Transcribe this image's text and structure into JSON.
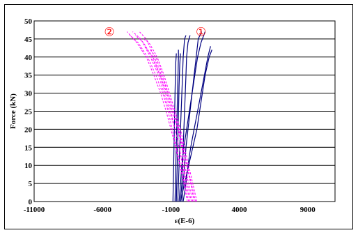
{
  "chart_data": {
    "type": "line",
    "title": "",
    "xlabel": "ε(E-6)",
    "ylabel": "Force (kN)",
    "xlim": [
      -11000,
      11000
    ],
    "ylim": [
      0,
      50
    ],
    "x_ticks": [
      "-11000",
      "-6000",
      "-1000",
      "4000",
      "9000"
    ],
    "y_ticks": [
      "0",
      "5",
      "10",
      "15",
      "20",
      "25",
      "30",
      "35",
      "40",
      "45",
      "50"
    ],
    "grid": "horizontal",
    "legend": "none",
    "annotations": [
      {
        "text": "①",
        "x": 1200,
        "y": 47
      },
      {
        "text": "②",
        "x": -5500,
        "y": 47
      }
    ],
    "series": [
      {
        "color": "#000080",
        "style": "solid",
        "values": [
          [
            [
              -200,
              0
            ],
            [
              -100,
              5
            ],
            [
              0,
              10
            ],
            [
              100,
              15
            ],
            [
              250,
              20
            ],
            [
              400,
              25
            ],
            [
              550,
              30
            ],
            [
              700,
              35
            ],
            [
              850,
              40
            ],
            [
              1000,
              45
            ],
            [
              1250,
              47
            ]
          ],
          [
            [
              -400,
              0
            ],
            [
              -300,
              5
            ],
            [
              -200,
              10
            ],
            [
              -50,
              15
            ],
            [
              150,
              20
            ],
            [
              350,
              25
            ],
            [
              550,
              30
            ],
            [
              750,
              35
            ],
            [
              950,
              40
            ],
            [
              1200,
              44
            ],
            [
              1500,
              47
            ]
          ],
          [
            [
              -100,
              0
            ],
            [
              100,
              5
            ],
            [
              250,
              10
            ],
            [
              450,
              15
            ],
            [
              700,
              20
            ],
            [
              950,
              25
            ],
            [
              1200,
              30
            ],
            [
              1450,
              35
            ],
            [
              1700,
              40
            ],
            [
              1900,
              43
            ]
          ],
          [
            [
              -300,
              0
            ],
            [
              -200,
              5
            ],
            [
              -150,
              10
            ],
            [
              -100,
              15
            ],
            [
              -50,
              20
            ],
            [
              0,
              25
            ],
            [
              50,
              30
            ],
            [
              100,
              35
            ],
            [
              150,
              40
            ],
            [
              250,
              44
            ],
            [
              400,
              46
            ]
          ],
          [
            [
              -500,
              0
            ],
            [
              -450,
              5
            ],
            [
              -400,
              10
            ],
            [
              -350,
              15
            ],
            [
              -300,
              20
            ],
            [
              -250,
              25
            ],
            [
              -200,
              30
            ],
            [
              -150,
              35
            ],
            [
              -100,
              40
            ],
            [
              0,
              45
            ],
            [
              100,
              46
            ]
          ],
          [
            [
              -700,
              0
            ],
            [
              -650,
              8
            ],
            [
              -600,
              16
            ],
            [
              -550,
              24
            ],
            [
              -500,
              32
            ],
            [
              -450,
              40
            ],
            [
              -450,
              42
            ]
          ],
          [
            [
              -850,
              0
            ],
            [
              -800,
              10
            ],
            [
              -750,
              20
            ],
            [
              -700,
              30
            ],
            [
              -650,
              38
            ],
            [
              -600,
              41
            ]
          ],
          [
            [
              -600,
              0
            ],
            [
              -550,
              8
            ],
            [
              -500,
              16
            ],
            [
              -450,
              24
            ],
            [
              -400,
              32
            ],
            [
              -350,
              38
            ],
            [
              -300,
              41
            ]
          ],
          [
            [
              -300,
              0
            ],
            [
              0,
              5
            ],
            [
              300,
              10
            ],
            [
              600,
              15
            ],
            [
              900,
              20
            ],
            [
              1100,
              25
            ],
            [
              1300,
              30
            ],
            [
              1500,
              35
            ],
            [
              1800,
              40
            ],
            [
              2000,
              42
            ]
          ]
        ]
      },
      {
        "color": "#ff00ff",
        "style": "dashed",
        "values": [
          [
            [
              500,
              0
            ],
            [
              200,
              5
            ],
            [
              -100,
              10
            ],
            [
              -400,
              15
            ],
            [
              -700,
              20
            ],
            [
              -1100,
              25
            ],
            [
              -1500,
              30
            ],
            [
              -1900,
              35
            ],
            [
              -2500,
              40
            ],
            [
              -3200,
              45
            ],
            [
              -3800,
              47
            ]
          ],
          [
            [
              800,
              0
            ],
            [
              500,
              5
            ],
            [
              200,
              10
            ],
            [
              -100,
              15
            ],
            [
              -400,
              20
            ],
            [
              -800,
              25
            ],
            [
              -1200,
              30
            ],
            [
              -1700,
              35
            ],
            [
              -2200,
              40
            ],
            [
              -2800,
              45
            ],
            [
              -3300,
              47
            ]
          ],
          [
            [
              600,
              0
            ],
            [
              300,
              5
            ],
            [
              0,
              10
            ],
            [
              -200,
              15
            ],
            [
              -500,
              20
            ],
            [
              -900,
              25
            ],
            [
              -1300,
              30
            ],
            [
              -1800,
              35
            ],
            [
              -2400,
              40
            ],
            [
              -3000,
              44
            ],
            [
              -3600,
              46
            ]
          ],
          [
            [
              300,
              0
            ],
            [
              0,
              5
            ],
            [
              -300,
              10
            ],
            [
              -600,
              15
            ],
            [
              -900,
              20
            ],
            [
              -1200,
              25
            ],
            [
              -1600,
              30
            ],
            [
              -2100,
              35
            ],
            [
              -2700,
              40
            ],
            [
              -3400,
              44
            ],
            [
              -4000,
              46
            ]
          ],
          [
            [
              900,
              0
            ],
            [
              600,
              5
            ],
            [
              300,
              10
            ],
            [
              0,
              15
            ],
            [
              -300,
              20
            ],
            [
              -700,
              25
            ],
            [
              -1100,
              30
            ],
            [
              -1500,
              35
            ],
            [
              -2000,
              40
            ],
            [
              -2600,
              44
            ],
            [
              -3000,
              45
            ]
          ],
          [
            [
              400,
              0
            ],
            [
              100,
              5
            ],
            [
              -150,
              10
            ],
            [
              -400,
              15
            ],
            [
              -700,
              20
            ],
            [
              -1000,
              25
            ],
            [
              -1400,
              30
            ],
            [
              -1800,
              35
            ],
            [
              -2300,
              40
            ],
            [
              -2900,
              43
            ]
          ],
          [
            [
              700,
              0
            ],
            [
              450,
              5
            ],
            [
              150,
              10
            ],
            [
              -150,
              15
            ],
            [
              -450,
              20
            ],
            [
              -800,
              25
            ],
            [
              -1200,
              30
            ],
            [
              -1600,
              35
            ],
            [
              -2100,
              40
            ],
            [
              -2500,
              42
            ]
          ],
          [
            [
              200,
              0
            ],
            [
              -50,
              5
            ],
            [
              -350,
              10
            ],
            [
              -650,
              15
            ],
            [
              -1000,
              20
            ],
            [
              -1350,
              25
            ],
            [
              -1750,
              30
            ],
            [
              -2250,
              35
            ],
            [
              -2800,
              40
            ],
            [
              -3500,
              44
            ],
            [
              -4200,
              47
            ]
          ]
        ]
      }
    ]
  }
}
